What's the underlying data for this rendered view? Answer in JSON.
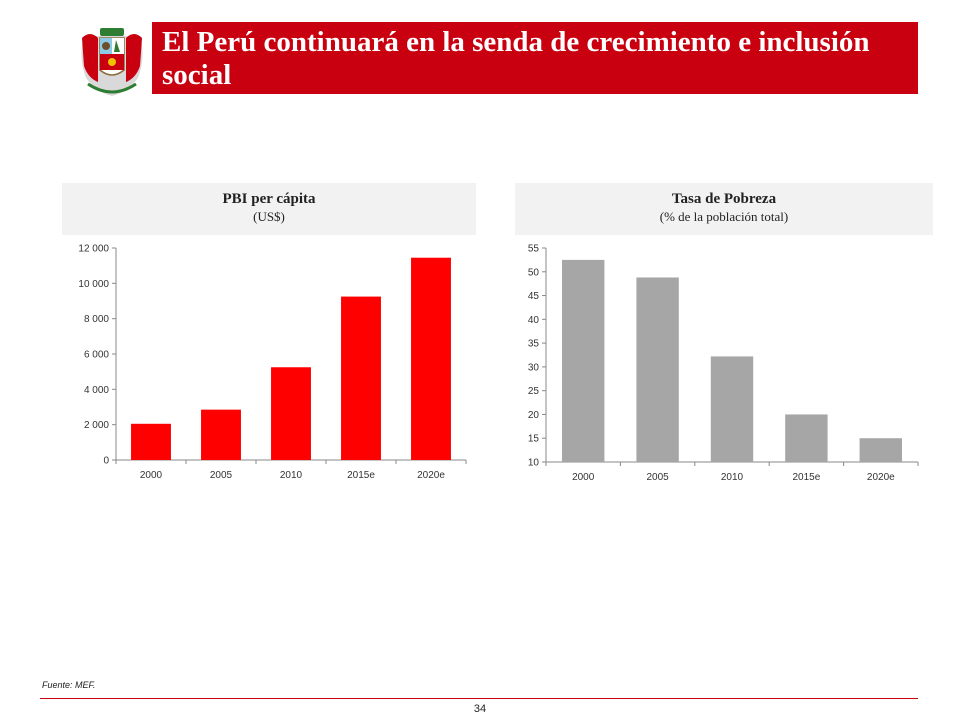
{
  "header": {
    "title": "El Perú continuará en la senda de crecimiento e inclusión social"
  },
  "colors": {
    "accent": "#c8000f",
    "bar_red": "#ff0000",
    "bar_gray": "#a6a6a6"
  },
  "chart_data": [
    {
      "type": "bar",
      "title": "PBI per cápita",
      "subtitle": "(US$)",
      "categories": [
        "2000",
        "2005",
        "2010",
        "2015e",
        "2020e"
      ],
      "values": [
        2050,
        2850,
        5250,
        9250,
        11450
      ],
      "ylim": [
        0,
        12000
      ],
      "yticks": [
        0,
        2000,
        4000,
        6000,
        8000,
        10000,
        12000
      ],
      "ytick_labels": [
        "0",
        "2 000",
        "4 000",
        "6 000",
        "8 000",
        "10 000",
        "12 000"
      ],
      "color": "#ff0000"
    },
    {
      "type": "bar",
      "title": "Tasa de Pobreza",
      "subtitle": "(% de la población total)",
      "categories": [
        "2000",
        "2005",
        "2010",
        "2015e",
        "2020e"
      ],
      "values": [
        52.5,
        48.8,
        32.2,
        20.0,
        15.0
      ],
      "ylim": [
        10,
        55
      ],
      "yticks": [
        10,
        15,
        20,
        25,
        30,
        35,
        40,
        45,
        50,
        55
      ],
      "ytick_labels": [
        "10",
        "15",
        "20",
        "25",
        "30",
        "35",
        "40",
        "45",
        "50",
        "55"
      ],
      "color": "#a6a6a6"
    }
  ],
  "footer": {
    "source": "Fuente: MEF.",
    "page_number": "34"
  }
}
